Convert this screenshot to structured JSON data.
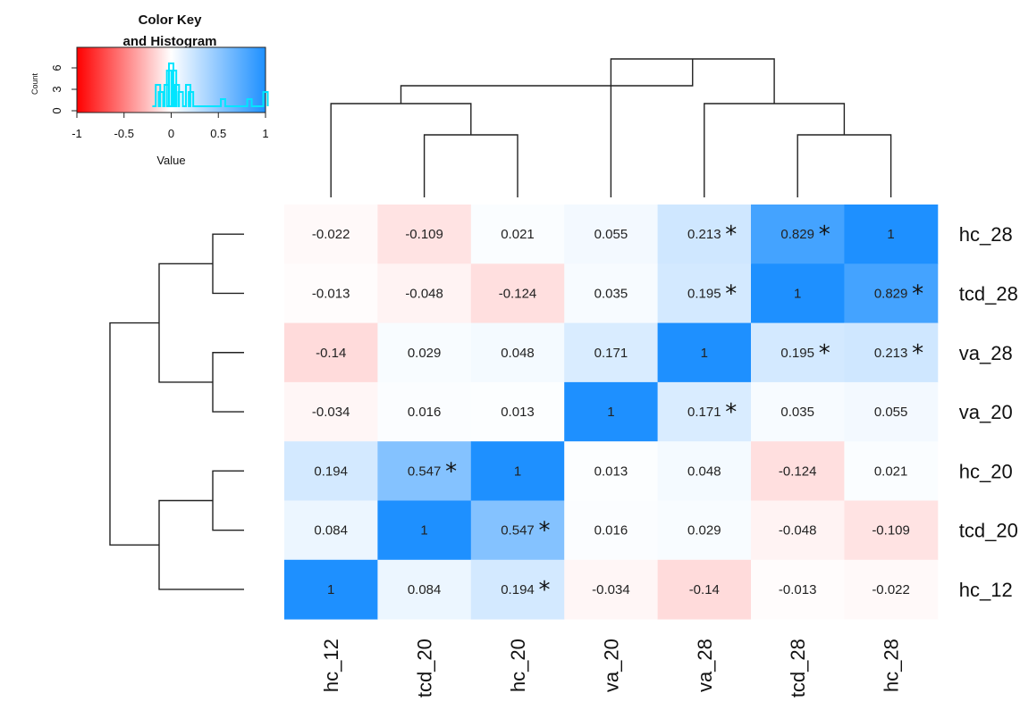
{
  "chart_data": {
    "type": "heatmap",
    "rows": [
      "hc_28",
      "tcd_28",
      "va_28",
      "va_20",
      "hc_20",
      "tcd_20",
      "hc_12"
    ],
    "columns": [
      "hc_12",
      "tcd_20",
      "hc_20",
      "va_20",
      "va_28",
      "tcd_28",
      "hc_28"
    ],
    "values": [
      [
        -0.022,
        -0.109,
        0.021,
        0.055,
        0.213,
        0.829,
        1
      ],
      [
        -0.013,
        -0.048,
        -0.124,
        0.035,
        0.195,
        1,
        0.829
      ],
      [
        -0.14,
        0.029,
        0.048,
        0.171,
        1,
        0.195,
        0.213
      ],
      [
        -0.034,
        0.016,
        0.013,
        1,
        0.171,
        0.035,
        0.055
      ],
      [
        0.194,
        0.547,
        1,
        0.013,
        0.048,
        -0.124,
        0.021
      ],
      [
        0.084,
        1,
        0.547,
        0.016,
        0.029,
        -0.048,
        -0.109
      ],
      [
        1,
        0.084,
        0.194,
        -0.034,
        -0.14,
        -0.013,
        -0.022
      ]
    ],
    "labels": [
      [
        "-0.022",
        "-0.109",
        "0.021",
        "0.055",
        "0.213",
        "0.829",
        "1"
      ],
      [
        "-0.013",
        "-0.048",
        "-0.124",
        "0.035",
        "0.195",
        "1",
        "0.829"
      ],
      [
        "-0.14",
        "0.029",
        "0.048",
        "0.171",
        "1",
        "0.195",
        "0.213"
      ],
      [
        "-0.034",
        "0.016",
        "0.013",
        "1",
        "0.171",
        "0.035",
        "0.055"
      ],
      [
        "0.194",
        "0.547",
        "1",
        "0.013",
        "0.048",
        "-0.124",
        "0.021"
      ],
      [
        "0.084",
        "1",
        "0.547",
        "0.016",
        "0.029",
        "-0.048",
        "-0.109"
      ],
      [
        "1",
        "0.084",
        "0.194",
        "-0.034",
        "-0.14",
        "-0.013",
        "-0.022"
      ]
    ],
    "significant": [
      [
        false,
        false,
        false,
        false,
        true,
        true,
        false
      ],
      [
        false,
        false,
        false,
        false,
        true,
        false,
        true
      ],
      [
        false,
        false,
        false,
        false,
        false,
        true,
        true
      ],
      [
        false,
        false,
        false,
        false,
        true,
        false,
        false
      ],
      [
        false,
        true,
        false,
        false,
        false,
        false,
        false
      ],
      [
        false,
        false,
        true,
        false,
        false,
        false,
        false
      ],
      [
        false,
        false,
        true,
        false,
        false,
        false,
        false
      ]
    ],
    "significance_marker": "*",
    "color_scale": {
      "min": -1,
      "max": 1,
      "low_color": "#ff0000",
      "mid_color": "#ffffff",
      "high_color": "#1e90ff"
    },
    "row_dendrogram": [
      [
        0,
        1
      ],
      [
        2,
        3
      ],
      [
        4,
        5
      ],
      [
        [
          4,
          5
        ],
        6
      ],
      [
        [
          0,
          1
        ],
        [
          2,
          3
        ]
      ],
      [
        [
          [
            0,
            1
          ],
          [
            2,
            3
          ]
        ],
        [
          [
            4,
            5
          ],
          6
        ]
      ]
    ],
    "col_dendrogram": [
      [
        1,
        2
      ],
      [
        0,
        [
          1,
          2
        ]
      ],
      [
        5,
        6
      ],
      [
        4,
        [
          5,
          6
        ]
      ],
      [
        3,
        [
          4,
          [
            5,
            6
          ]
        ]
      ],
      [
        [
          0,
          [
            1,
            2
          ]
        ],
        [
          3,
          [
            4,
            [
              5,
              6
            ]
          ]
        ]
      ]
    ],
    "color_key": {
      "title_line1": "Color Key",
      "title_line2": "and Histogram",
      "xlabel": "Value",
      "ylabel": "Count",
      "x_ticks": [
        "-1",
        "-0.5",
        "0",
        "0.5",
        "1"
      ],
      "y_ticks": [
        "0",
        "3",
        "6"
      ],
      "histogram_bins": [
        {
          "x": -0.14,
          "count": 3
        },
        {
          "x": -0.109,
          "count": 2
        },
        {
          "x": -0.048,
          "count": 3
        },
        {
          "x": -0.022,
          "count": 5
        },
        {
          "x": 0.0,
          "count": 6
        },
        {
          "x": 0.03,
          "count": 5
        },
        {
          "x": 0.06,
          "count": 3
        },
        {
          "x": 0.1,
          "count": 2
        },
        {
          "x": 0.18,
          "count": 3
        },
        {
          "x": 0.21,
          "count": 2
        },
        {
          "x": 0.55,
          "count": 1
        },
        {
          "x": 0.83,
          "count": 1
        },
        {
          "x": 1.0,
          "count": 2
        }
      ]
    }
  }
}
